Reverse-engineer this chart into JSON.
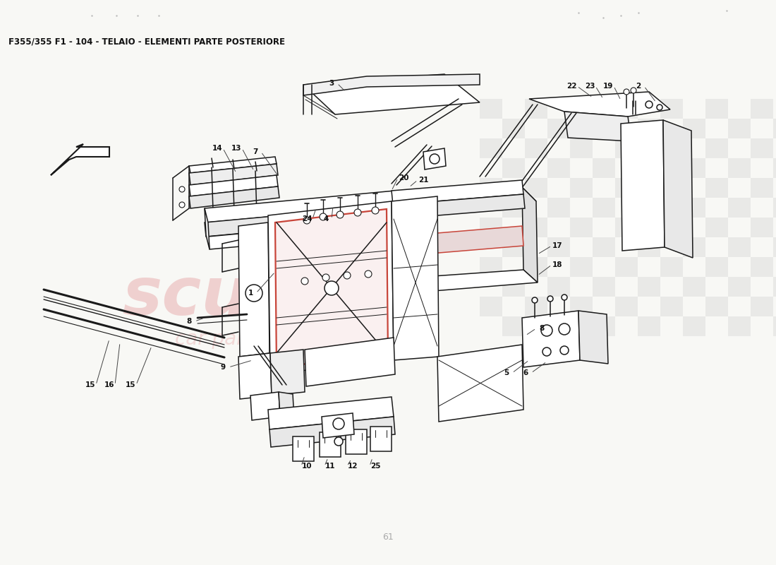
{
  "title": "F355/355 F1 - 104 - TELAIO - ELEMENTI PARTE POSTERIORE",
  "background_color": "#f8f8f5",
  "title_fontsize": 8.5,
  "fig_width": 11.0,
  "fig_height": 8.0,
  "dpi": 100,
  "line_color": "#1a1a1a",
  "highlight_color": "#c8453a",
  "watermark_pink": "#e8aaaa",
  "watermark_gray": "#c0c0c0",
  "checker_gray": "#c8c8c8",
  "label_fontsize": 7.5
}
